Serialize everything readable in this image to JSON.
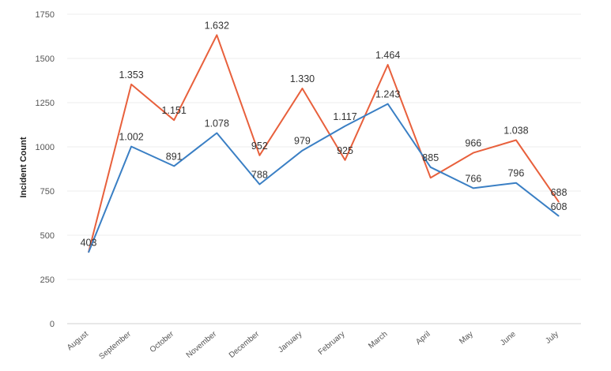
{
  "chart_data": {
    "type": "line",
    "title": "",
    "xlabel": "",
    "ylabel": "Incident Count",
    "ylim": [
      0,
      1750
    ],
    "yticks": [
      0,
      250,
      500,
      750,
      1000,
      1250,
      1500,
      1750
    ],
    "ytick_labels": [
      "0",
      "250",
      "500",
      "750",
      "1000",
      "1250",
      "1500",
      "1750"
    ],
    "grid": true,
    "legend": "none",
    "categories": [
      "August",
      "September",
      "October",
      "November",
      "December",
      "January",
      "February",
      "March",
      "April",
      "May",
      "June",
      "July"
    ],
    "series": [
      {
        "color": "#e8603c",
        "values": [
          403,
          1353,
          1151,
          1632,
          952,
          1330,
          925,
          1464,
          825,
          966,
          1038,
          688
        ],
        "labels": [
          "",
          "1.353",
          "1.151",
          "1.632",
          "952",
          "1.330",
          "925",
          "1.464",
          "",
          "966",
          "1.038",
          "688"
        ]
      },
      {
        "color": "#3a7fc4",
        "values": [
          403,
          1002,
          891,
          1078,
          788,
          979,
          1117,
          1243,
          885,
          766,
          796,
          608
        ],
        "labels": [
          "403",
          "1.002",
          "891",
          "1.078",
          "788",
          "979",
          "1.117",
          "1.243",
          "885",
          "766",
          "796",
          "608"
        ]
      }
    ]
  }
}
